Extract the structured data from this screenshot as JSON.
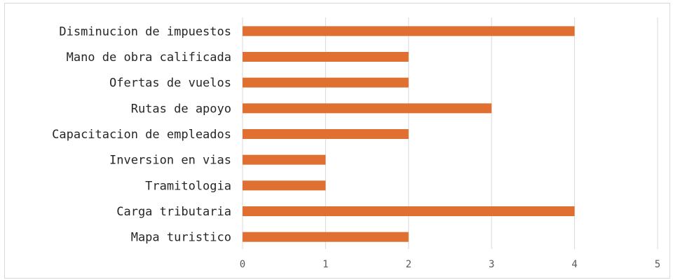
{
  "chart_data": {
    "type": "bar",
    "orientation": "horizontal",
    "categories": [
      "Disminucion de impuestos",
      "Mano de obra calificada ",
      "Ofertas de vuelos",
      "Rutas de apoyo",
      "Capacitacion de empleados",
      "Inversion en vias",
      "Tramitologia",
      "Carga tributaria",
      "Mapa turistico"
    ],
    "values": [
      4,
      2,
      2,
      3,
      2,
      1,
      1,
      4,
      2
    ],
    "xlim": [
      0,
      5
    ],
    "xticks": [
      "0",
      "1",
      "2",
      "3",
      "4",
      "5"
    ],
    "grid": true,
    "title": "",
    "xlabel": "",
    "ylabel": "",
    "bar_color": "#e07032",
    "grid_color": "#d9d9d9"
  }
}
